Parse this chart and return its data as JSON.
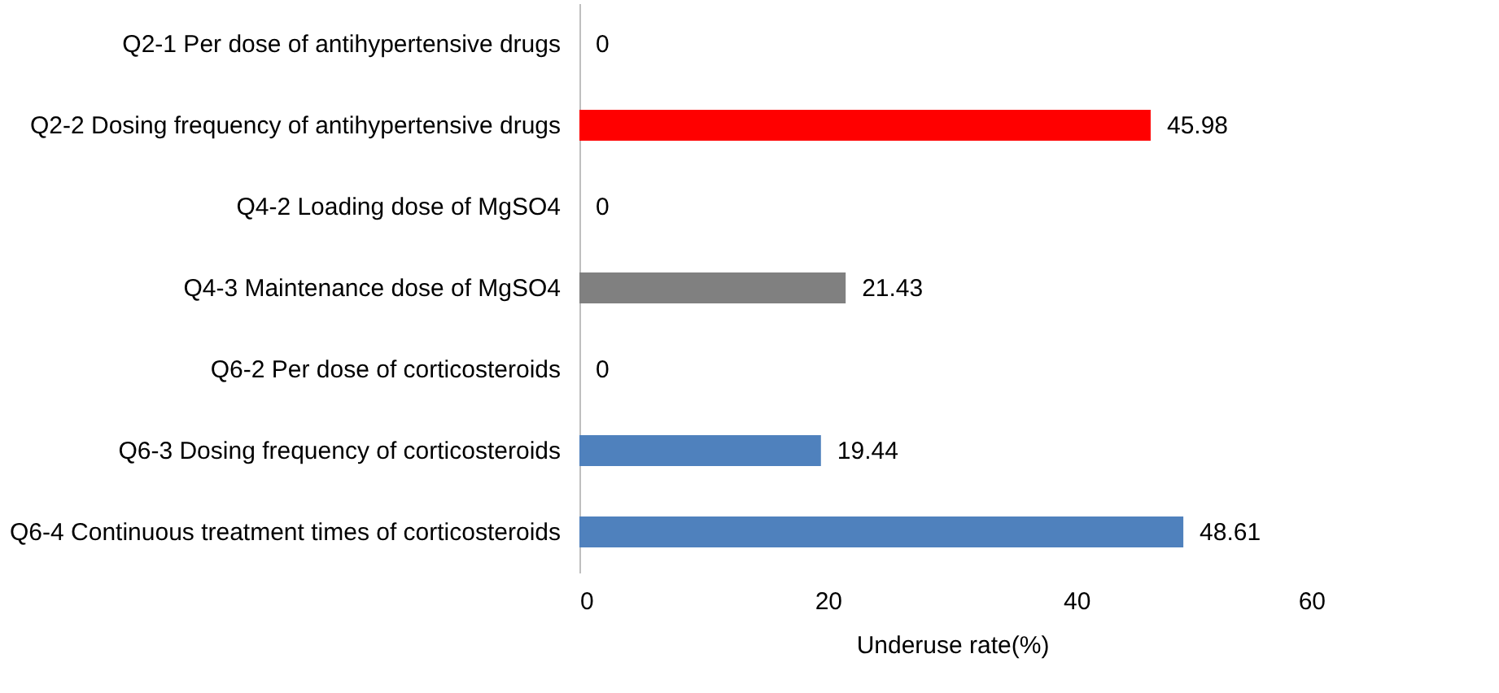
{
  "chart_data": {
    "type": "bar",
    "orientation": "horizontal",
    "xlabel": "Underuse rate(%)",
    "categories": [
      "Q2-1 Per dose of antihypertensive drugs",
      "Q2-2 Dosing frequency of antihypertensive drugs",
      "Q4-2 Loading dose of  MgSO4",
      "Q4-3 Maintenance dose of  MgSO4",
      "Q6-2 Per dose of corticosteroids",
      "Q6-3 Dosing frequency of corticosteroids",
      "Q6-4 Continuous treatment times of corticosteroids"
    ],
    "values": [
      0,
      45.98,
      0,
      21.43,
      0,
      19.44,
      48.61
    ],
    "colors": [
      "#ff0000",
      "#ff0000",
      "#808080",
      "#808080",
      "#4f81bd",
      "#4f81bd",
      "#4f81bd"
    ],
    "xlim": [
      0,
      60
    ],
    "xticks": [
      0,
      20,
      40,
      60
    ],
    "grid": false,
    "data_labels": true
  }
}
